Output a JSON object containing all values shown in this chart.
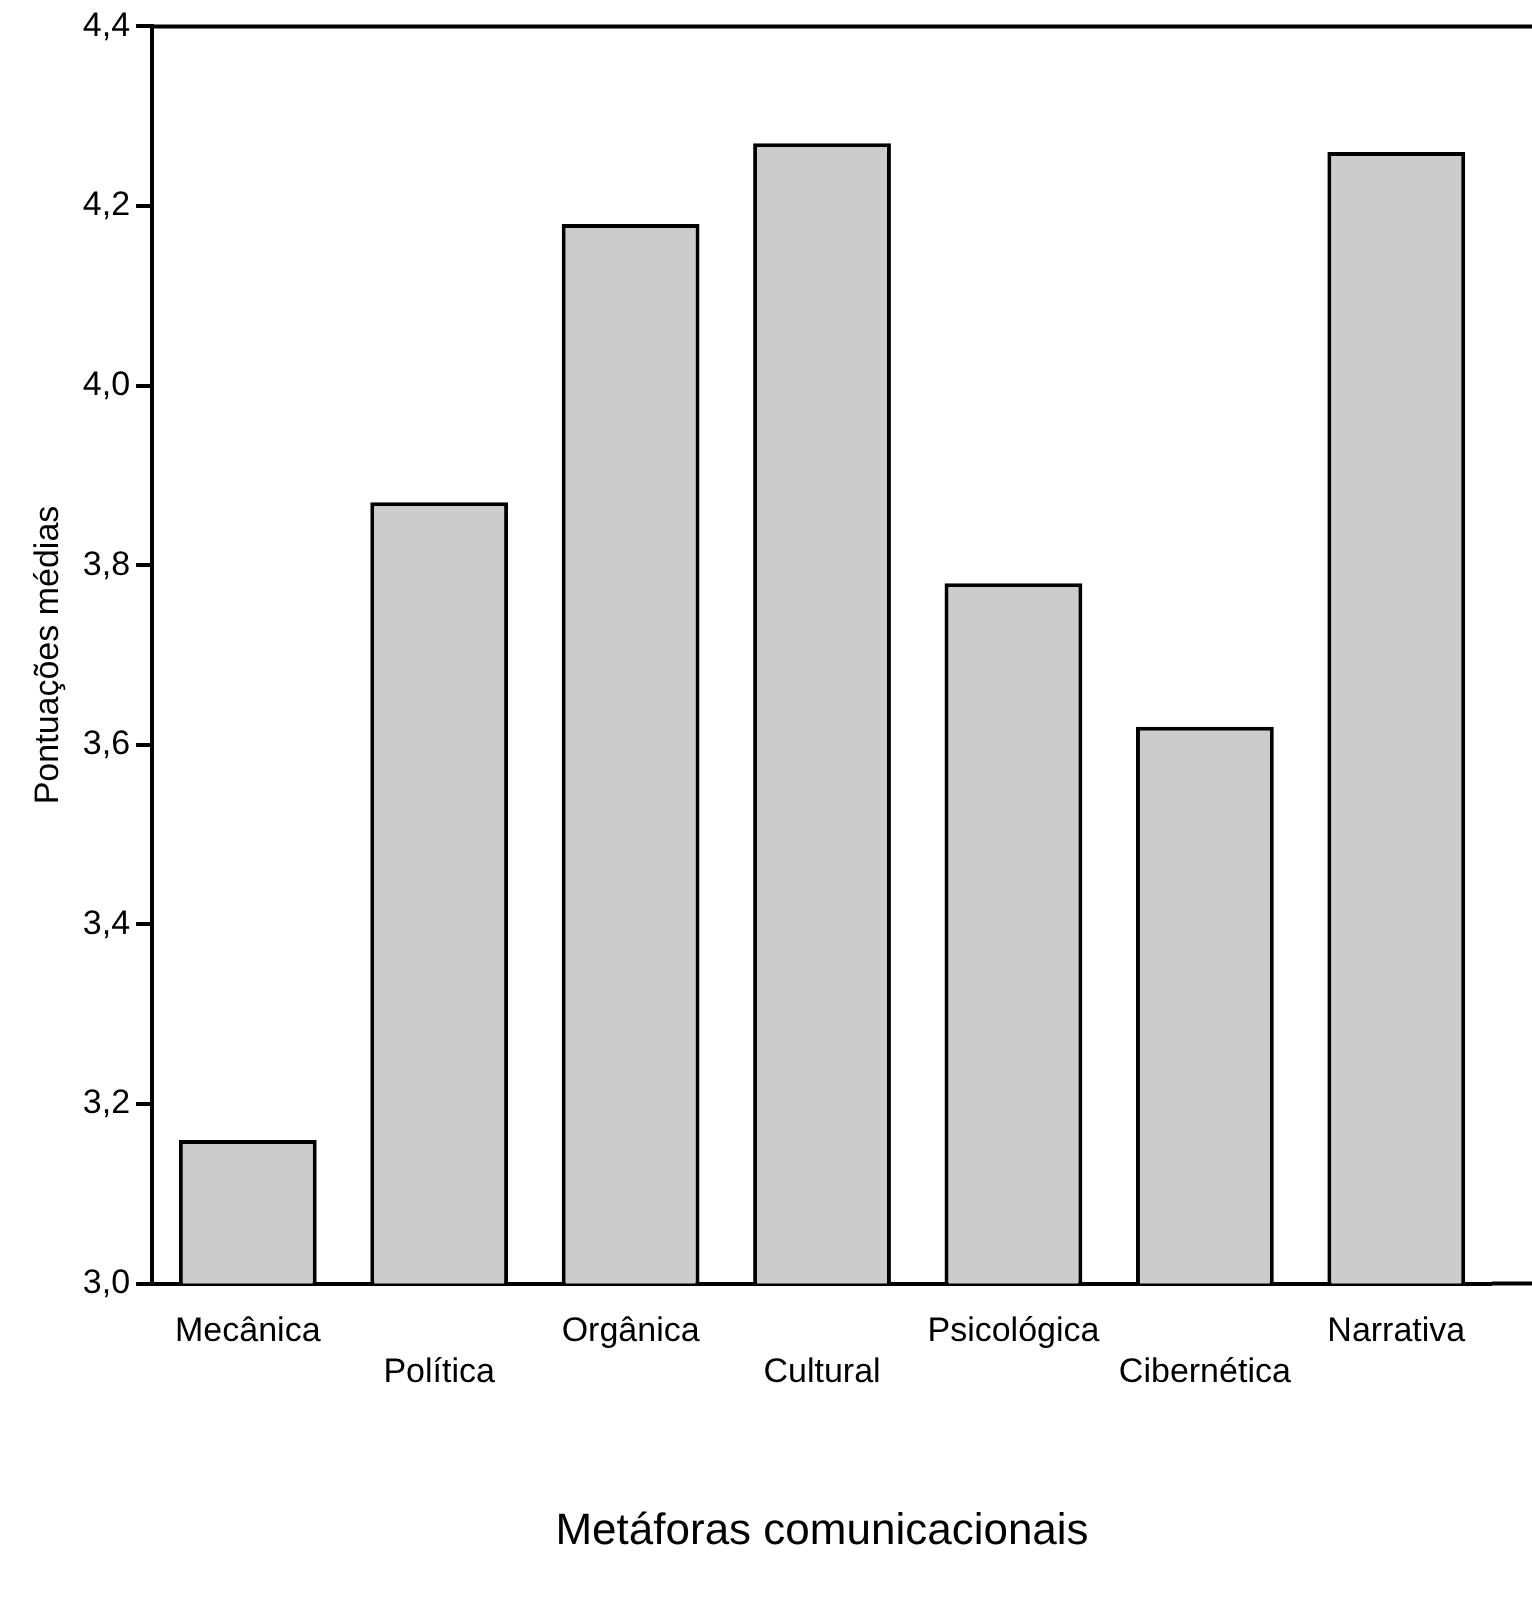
{
  "chart_data": {
    "type": "bar",
    "xlabel": "Metáforas comunicacionais",
    "ylabel": "Pontuações médias",
    "categories": [
      "Mecânica",
      "Política",
      "Orgânica",
      "Cultural",
      "Psicológica",
      "Cibernética",
      "Narrativa"
    ],
    "values": [
      3.16,
      3.87,
      4.18,
      4.27,
      3.78,
      3.62,
      4.26
    ],
    "color": "#cccccc",
    "ylim": [
      3.0,
      4.4
    ],
    "yticks": [
      {
        "value": 3.0,
        "label": "3,0"
      },
      {
        "value": 3.2,
        "label": "3,2"
      },
      {
        "value": 3.4,
        "label": "3,4"
      },
      {
        "value": 3.6,
        "label": "3,6"
      },
      {
        "value": 3.8,
        "label": "3,8"
      },
      {
        "value": 4.0,
        "label": "4,0"
      },
      {
        "value": 4.2,
        "label": "4,2"
      },
      {
        "value": 4.4,
        "label": "4,4"
      }
    ],
    "grid": false,
    "legend": false
  }
}
